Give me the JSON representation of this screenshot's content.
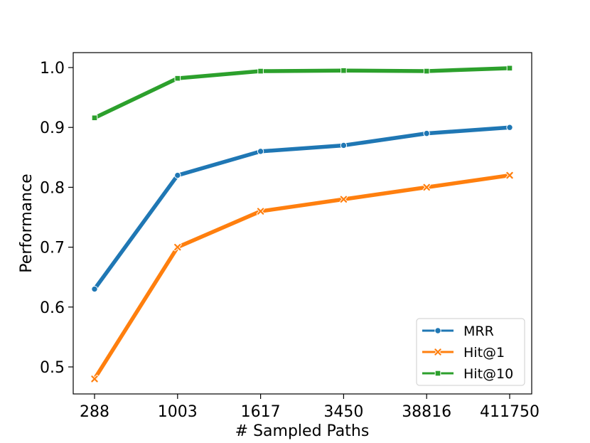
{
  "chart_data": {
    "type": "line",
    "xlabel": "# Sampled Paths",
    "ylabel": "Performance",
    "categories": [
      "288",
      "1003",
      "1617",
      "3450",
      "38816",
      "411750"
    ],
    "ylim": [
      0.45,
      1.025
    ],
    "yticks": [
      "0.5",
      "0.6",
      "0.7",
      "0.8",
      "0.9",
      "1.0"
    ],
    "grid": false,
    "legend_position": "lower-right",
    "series": [
      {
        "name": "MRR",
        "color": "#1f77b4",
        "marker": "circle",
        "values": [
          0.63,
          0.82,
          0.86,
          0.87,
          0.89,
          0.9
        ]
      },
      {
        "name": "Hit@1",
        "color": "#ff7f0e",
        "marker": "x",
        "values": [
          0.48,
          0.7,
          0.76,
          0.78,
          0.8,
          0.82
        ]
      },
      {
        "name": "Hit@10",
        "color": "#2ca02c",
        "marker": "square",
        "values": [
          0.916,
          0.982,
          0.994,
          0.995,
          0.994,
          0.999
        ]
      }
    ]
  }
}
